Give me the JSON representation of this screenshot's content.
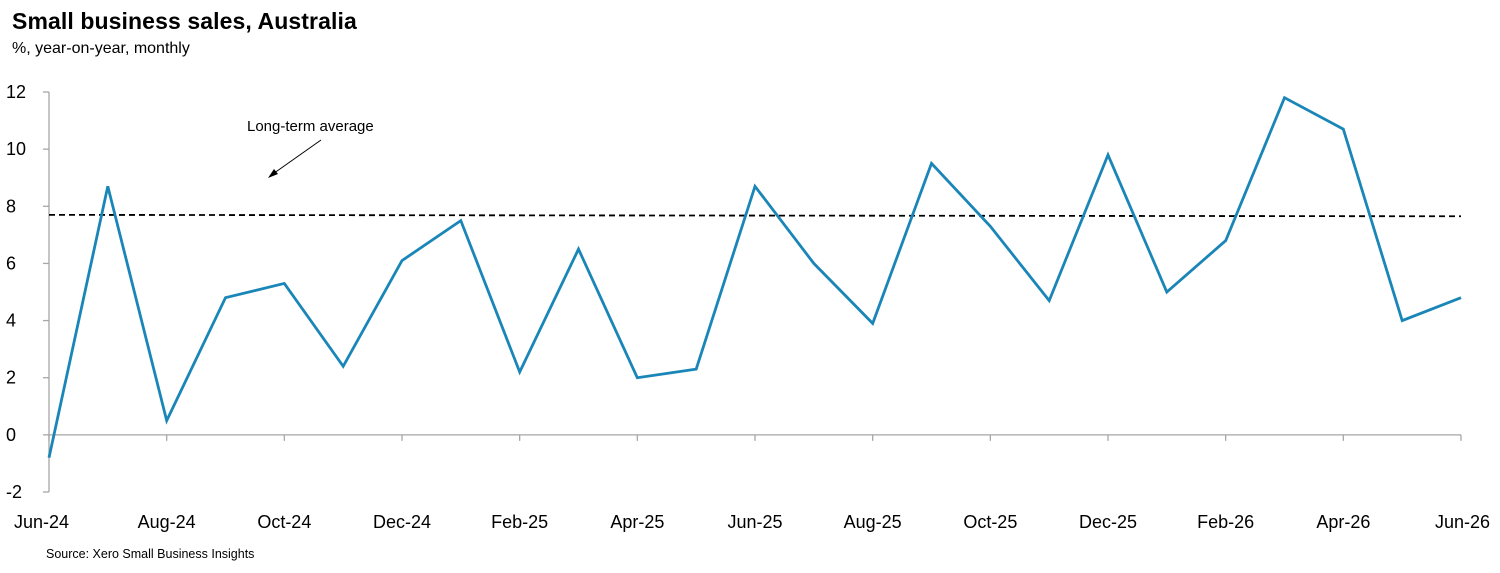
{
  "chart_data": {
    "type": "line",
    "title": "Small business sales, Australia",
    "subtitle": "%, year-on-year, monthly",
    "source": "Source: Xero Small Business Insights",
    "ylim": [
      -2,
      12
    ],
    "yticks": [
      -2,
      0,
      2,
      4,
      6,
      8,
      10,
      12
    ],
    "x_tick_labels": [
      "Jun-24",
      "Aug-24",
      "Oct-24",
      "Dec-24",
      "Feb-25",
      "Apr-25",
      "Jun-25",
      "Aug-25",
      "Oct-25",
      "Dec-25",
      "Feb-26",
      "Apr-26",
      "Jun-26"
    ],
    "x": [
      "Jun-24",
      "Jul-24",
      "Aug-24",
      "Sep-24",
      "Oct-24",
      "Nov-24",
      "Dec-24",
      "Jan-25",
      "Feb-25",
      "Mar-25",
      "Apr-25",
      "May-25",
      "Jun-25",
      "Jul-25",
      "Aug-25",
      "Sep-25",
      "Oct-25",
      "Nov-25",
      "Dec-25",
      "Jan-26",
      "Feb-26",
      "Mar-26",
      "Apr-26",
      "May-26",
      "Jun-26"
    ],
    "series": [
      {
        "values": [
          -0.8,
          8.7,
          0.5,
          4.8,
          5.3,
          2.4,
          6.1,
          7.5,
          2.2,
          6.5,
          2.0,
          2.3,
          8.7,
          6.0,
          3.9,
          9.5,
          7.3,
          4.7,
          9.8,
          5.0,
          6.8,
          11.8,
          10.7,
          4.0,
          4.8
        ],
        "color": "#1a86b8"
      }
    ],
    "reference_line": {
      "label": "Long-term average",
      "start_value": 7.7,
      "end_value": 7.65,
      "style": "dashed",
      "color": "#000000"
    },
    "grid": false,
    "legend": "none"
  }
}
